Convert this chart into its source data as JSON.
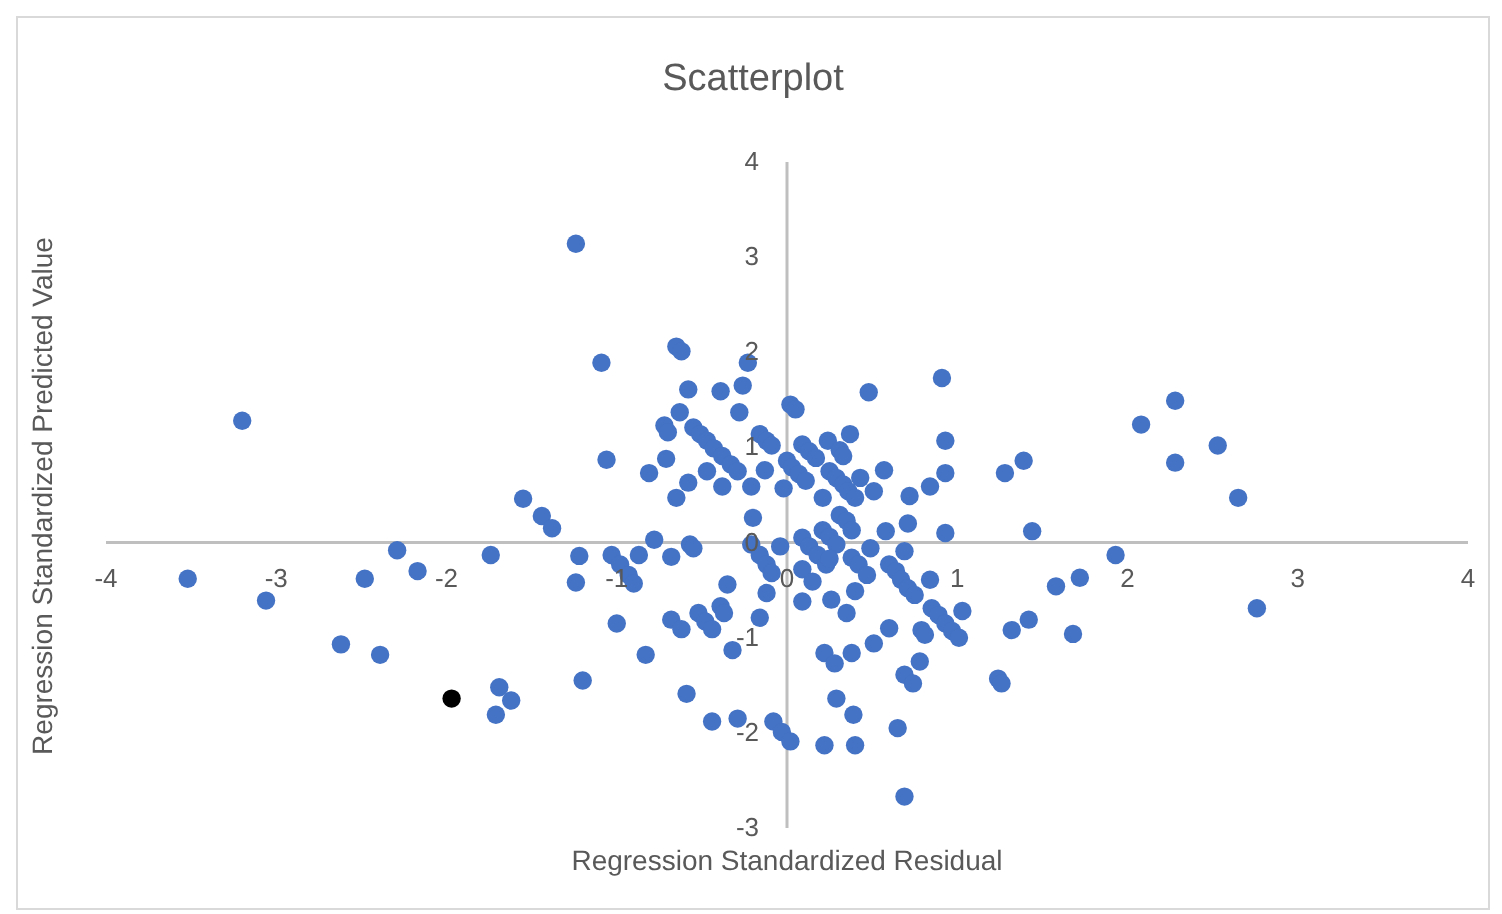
{
  "chart_data": {
    "type": "scatter",
    "title": "Scatterplot",
    "xlabel": "Regression Standardized Residual",
    "ylabel": "Regression Standardized Predicted Value",
    "xlim": [
      -4,
      4
    ],
    "ylim": [
      -3,
      4
    ],
    "xticks": [
      -4,
      -3,
      -2,
      -1,
      0,
      1,
      2,
      3,
      4
    ],
    "yticks": [
      -3,
      -2,
      -1,
      0,
      1,
      2,
      3,
      4
    ],
    "grid": false,
    "legend": false,
    "marker": "circle",
    "series": [
      {
        "color": "#4472c4",
        "x": [
          -3.2,
          -3.52,
          -3.06,
          -2.62,
          -2.39,
          -2.48,
          -2.29,
          -2.17,
          -1.74,
          -1.69,
          -1.62,
          -1.71,
          -1.55,
          -1.44,
          -1.38,
          -1.24,
          -1.09,
          -1.06,
          -1.22,
          -1.24,
          -1.03,
          -0.98,
          -0.93,
          -0.9,
          -1.0,
          -1.2,
          -0.83,
          -0.87,
          -0.78,
          -0.68,
          -0.81,
          -0.71,
          -0.72,
          -0.7,
          -0.65,
          -0.58,
          -0.63,
          -0.58,
          -0.65,
          -0.62,
          -0.57,
          -0.55,
          -0.68,
          -0.62,
          -0.52,
          -0.48,
          -0.44,
          -0.39,
          -0.37,
          -0.35,
          -0.59,
          -0.44,
          -0.29,
          -0.32,
          -0.16,
          -0.12,
          -0.08,
          -0.03,
          0.02,
          -0.55,
          -0.51,
          -0.47,
          -0.43,
          -0.38,
          -0.33,
          -0.29,
          -0.47,
          -0.38,
          -0.39,
          -0.28,
          -0.26,
          -0.23,
          -0.21,
          -0.2,
          -0.21,
          -0.16,
          -0.12,
          -0.09,
          -0.16,
          -0.12,
          -0.09,
          -0.13,
          -0.02,
          -0.04,
          0.02,
          0.05,
          0.0,
          0.03,
          0.07,
          0.11,
          0.09,
          0.13,
          0.17,
          0.24,
          0.31,
          0.33,
          0.37,
          0.25,
          0.29,
          0.33,
          0.36,
          0.4,
          0.43,
          0.21,
          0.51,
          0.57,
          0.48,
          0.31,
          0.35,
          0.38,
          0.21,
          0.25,
          0.29,
          0.09,
          0.13,
          0.18,
          0.23,
          0.38,
          0.42,
          0.47,
          0.49,
          0.58,
          0.69,
          0.71,
          0.72,
          0.84,
          0.93,
          0.93,
          0.93,
          0.91,
          0.6,
          0.64,
          0.67,
          0.71,
          0.75,
          0.84,
          0.85,
          0.89,
          0.93,
          0.97,
          1.01,
          1.03,
          0.09,
          0.15,
          0.25,
          0.09,
          0.26,
          0.4,
          0.35,
          0.22,
          0.28,
          0.38,
          0.51,
          0.6,
          0.79,
          0.81,
          0.78,
          0.69,
          0.74,
          0.29,
          0.39,
          0.22,
          0.4,
          0.65,
          0.69,
          1.24,
          1.26,
          1.32,
          1.42,
          1.28,
          1.39,
          1.44,
          1.93,
          1.72,
          1.58,
          1.68,
          2.08,
          2.28,
          2.28,
          2.53,
          2.65,
          2.76
        ],
        "values": [
          1.28,
          -0.38,
          -0.61,
          -1.07,
          -1.18,
          -0.38,
          -0.08,
          -0.3,
          -0.13,
          -1.52,
          -1.66,
          -1.81,
          0.46,
          0.28,
          0.15,
          3.14,
          1.89,
          0.87,
          -0.14,
          -0.42,
          -0.13,
          -0.23,
          -0.34,
          -0.43,
          -0.85,
          -1.45,
          -1.18,
          -0.13,
          0.03,
          -0.15,
          0.73,
          0.88,
          1.23,
          1.16,
          0.47,
          0.63,
          1.37,
          1.61,
          2.06,
          2.01,
          -0.02,
          -0.06,
          -0.81,
          -0.91,
          -0.74,
          -0.83,
          -0.91,
          -0.67,
          -0.74,
          -0.44,
          -1.59,
          -1.88,
          -1.85,
          -1.13,
          -0.79,
          -0.53,
          -1.88,
          -1.99,
          -2.09,
          1.21,
          1.14,
          1.07,
          0.99,
          0.91,
          0.82,
          0.75,
          0.75,
          0.59,
          1.59,
          1.37,
          1.65,
          1.89,
          0.59,
          0.26,
          -0.02,
          -0.13,
          -0.23,
          -0.32,
          1.14,
          1.07,
          1.02,
          0.76,
          0.57,
          -0.04,
          1.45,
          1.4,
          0.86,
          0.79,
          0.72,
          0.65,
          1.03,
          0.96,
          0.89,
          1.07,
          0.97,
          0.91,
          1.14,
          0.75,
          0.68,
          0.61,
          0.54,
          0.47,
          0.68,
          0.47,
          0.54,
          0.76,
          1.58,
          0.29,
          0.23,
          0.13,
          0.13,
          0.06,
          -0.02,
          0.05,
          -0.04,
          -0.13,
          -0.23,
          -0.16,
          -0.23,
          -0.34,
          -0.06,
          0.12,
          -0.09,
          0.2,
          0.49,
          0.59,
          1.07,
          0.73,
          0.1,
          1.73,
          -0.23,
          -0.3,
          -0.39,
          -0.48,
          -0.55,
          -0.39,
          -0.69,
          -0.76,
          -0.85,
          -0.93,
          -1.0,
          -0.72,
          -0.28,
          -0.41,
          -0.17,
          -0.62,
          -0.6,
          -0.51,
          -0.74,
          -1.16,
          -1.27,
          -1.16,
          -1.06,
          -0.9,
          -0.92,
          -0.97,
          -1.25,
          -1.39,
          -1.48,
          -1.64,
          -1.81,
          -2.13,
          -2.13,
          -1.95,
          -2.67,
          -1.43,
          -1.48,
          -0.92,
          -0.81,
          0.73,
          0.86,
          0.12,
          -0.13,
          -0.37,
          -0.46,
          -0.96,
          1.24,
          1.49,
          0.84,
          1.02,
          0.47,
          -0.69
        ]
      },
      {
        "color": "#000000",
        "x": [
          -1.97
        ],
        "values": [
          -1.64
        ]
      }
    ]
  }
}
